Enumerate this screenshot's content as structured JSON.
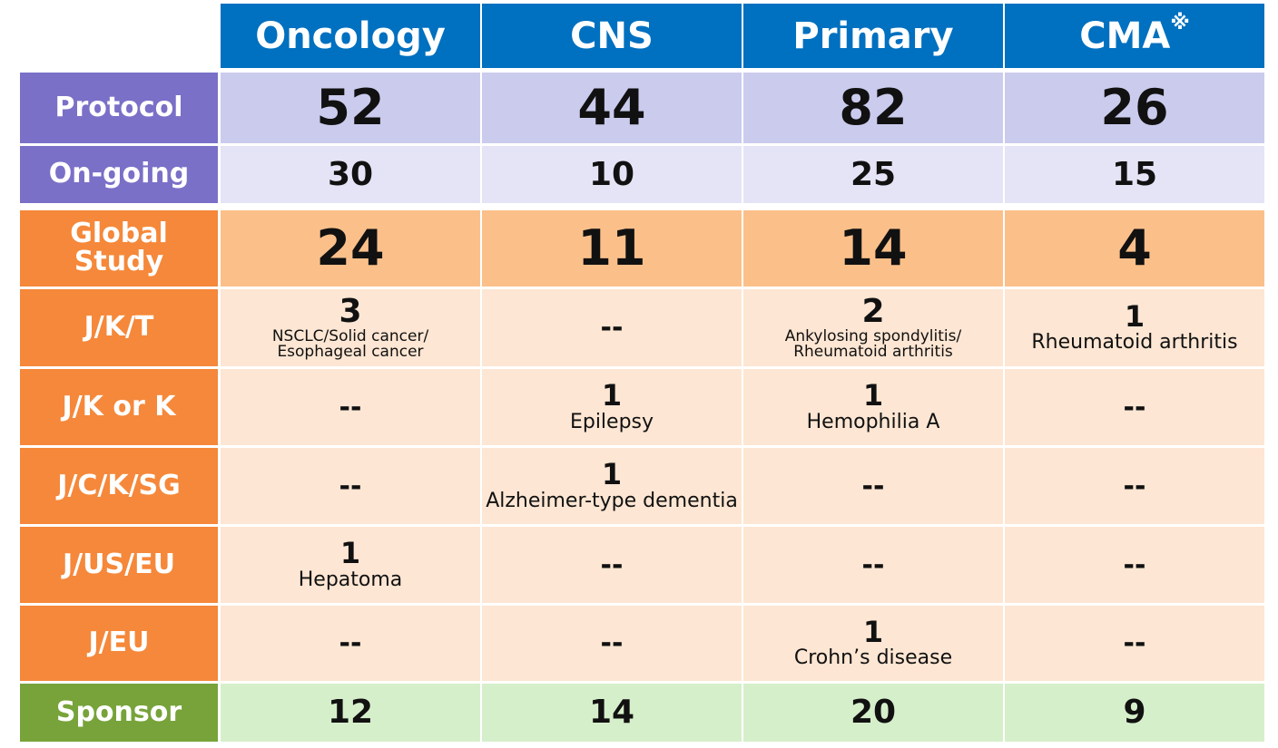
{
  "columns": [
    "Oncology",
    "CNS",
    "Primary",
    "CMA"
  ],
  "cma_note_mark": "※",
  "rows": [
    {
      "label": "Protocol",
      "style": "protocol",
      "cells": [
        {
          "value": "52"
        },
        {
          "value": "44"
        },
        {
          "value": "82"
        },
        {
          "value": "26"
        }
      ]
    },
    {
      "label": "On-going",
      "style": "ongoing",
      "cells": [
        {
          "value": "30"
        },
        {
          "value": "10"
        },
        {
          "value": "25"
        },
        {
          "value": "15"
        }
      ]
    },
    {
      "label": "Global\nStudy",
      "style": "global",
      "cells": [
        {
          "value": "24"
        },
        {
          "value": "11"
        },
        {
          "value": "14"
        },
        {
          "value": "4"
        }
      ]
    },
    {
      "label": "J/K/T",
      "style": "detail",
      "cells": [
        {
          "value": "3",
          "desc": "NSCLC/Solid cancer/\nEsophageal cancer"
        },
        {
          "value": "--"
        },
        {
          "value": "2",
          "desc": "Ankylosing spondylitis/\nRheumatoid arthritis"
        },
        {
          "value": "1",
          "desc": "Rheumatoid  arthritis"
        }
      ]
    },
    {
      "label": "J/K or K",
      "style": "detail",
      "cells": [
        {
          "value": "--"
        },
        {
          "value": "1",
          "desc": "Epilepsy"
        },
        {
          "value": "1",
          "desc": "Hemophilia  A"
        },
        {
          "value": "--"
        }
      ]
    },
    {
      "label": "J/C/K/SG",
      "style": "detail",
      "cells": [
        {
          "value": "--"
        },
        {
          "value": "1",
          "desc": "Alzheimer-type  dementia"
        },
        {
          "value": "--"
        },
        {
          "value": "--"
        }
      ]
    },
    {
      "label": "J/US/EU",
      "style": "detail",
      "cells": [
        {
          "value": "1",
          "desc": "Hepatoma"
        },
        {
          "value": "--"
        },
        {
          "value": "--"
        },
        {
          "value": "--"
        }
      ]
    },
    {
      "label": "J/EU",
      "style": "detail",
      "cells": [
        {
          "value": "--"
        },
        {
          "value": "--"
        },
        {
          "value": "1",
          "desc": "Crohn’s disease"
        },
        {
          "value": "--"
        }
      ]
    },
    {
      "label": "Sponsor",
      "style": "sponsor",
      "cells": [
        {
          "value": "12"
        },
        {
          "value": "14"
        },
        {
          "value": "20"
        },
        {
          "value": "9"
        }
      ]
    }
  ]
}
